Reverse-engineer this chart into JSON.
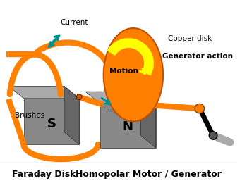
{
  "background_color": "#ffffff",
  "orange": "#FF8000",
  "teal": "#009090",
  "yellow": "#FFFF00",
  "label_faraday": "Faraday Disk",
  "label_homopolar": "Homopolar Motor / Generator",
  "label_current": "Current",
  "label_copper": "Copper disk",
  "label_motion": "Motion",
  "label_generator": "Generator action",
  "label_brushes": "Brushes",
  "label_S": "S",
  "label_N": "N",
  "gray_face": "#888888",
  "gray_side": "#666666",
  "gray_top": "#AAAAAA"
}
